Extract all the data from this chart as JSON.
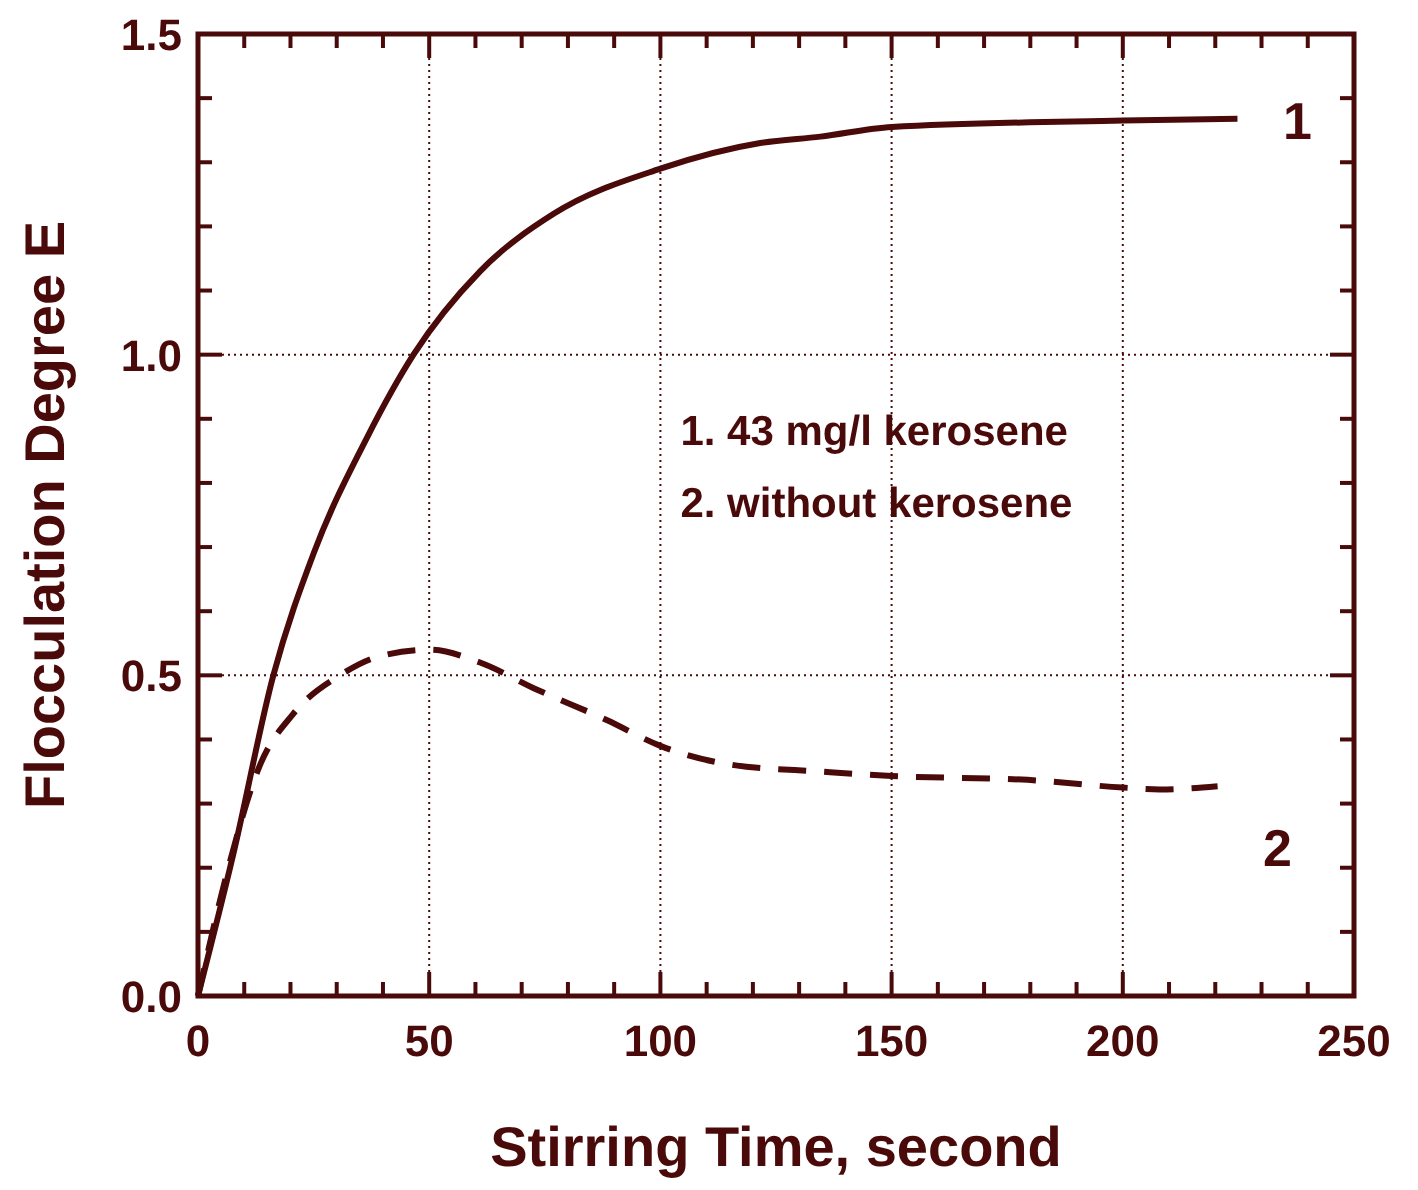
{
  "chart_data": {
    "type": "line",
    "xlabel": "Stirring Time, second",
    "ylabel": "Flocculation Degree E",
    "xlim": [
      0,
      250
    ],
    "ylim": [
      0,
      1.5
    ],
    "xticks": [
      0,
      {
        "value": 10,
        "label": null
      },
      {
        "value": 20,
        "label": null
      },
      {
        "value": 30,
        "label": null
      },
      {
        "value": 40,
        "label": null
      },
      50,
      {
        "value": 60,
        "label": null
      },
      {
        "value": 70,
        "label": null
      },
      {
        "value": 80,
        "label": null
      },
      {
        "value": 90,
        "label": null
      },
      100,
      {
        "value": 110,
        "label": null
      },
      {
        "value": 120,
        "label": null
      },
      {
        "value": 130,
        "label": null
      },
      {
        "value": 140,
        "label": null
      },
      150,
      {
        "value": 160,
        "label": null
      },
      {
        "value": 170,
        "label": null
      },
      {
        "value": 180,
        "label": null
      },
      {
        "value": 190,
        "label": null
      },
      200,
      {
        "value": 210,
        "label": null
      },
      {
        "value": 220,
        "label": null
      },
      {
        "value": 230,
        "label": null
      },
      {
        "value": 240,
        "label": null
      },
      250
    ],
    "yticks": [
      {
        "value": 0,
        "label": "0.0"
      },
      {
        "value": 0.1,
        "label": null
      },
      {
        "value": 0.2,
        "label": null
      },
      {
        "value": 0.3,
        "label": null
      },
      {
        "value": 0.4,
        "label": null
      },
      {
        "value": 0.5,
        "label": "0.5"
      },
      {
        "value": 0.6,
        "label": null
      },
      {
        "value": 0.7,
        "label": null
      },
      {
        "value": 0.8,
        "label": null
      },
      {
        "value": 0.9,
        "label": null
      },
      {
        "value": 1,
        "label": "1.0"
      },
      {
        "value": 1.1,
        "label": null
      },
      {
        "value": 1.2,
        "label": null
      },
      {
        "value": 1.3,
        "label": null
      },
      {
        "value": 1.4,
        "label": null
      },
      {
        "value": 1.5,
        "label": "1.5"
      }
    ],
    "grid": true,
    "marker": "none",
    "series": [
      {
        "color": "#4a0a0a",
        "line_style": "solid",
        "x": [
          0,
          7.6,
          16.3,
          25,
          36.5,
          46.6,
          61,
          77,
          100,
          121.6,
          134.6,
          150,
          200,
          224.8
        ],
        "values": [
          0,
          0.22,
          0.5,
          0.69,
          0.87,
          1.0,
          1.13,
          1.22,
          1.29,
          1.33,
          1.34,
          1.355,
          1.365,
          1.368
        ]
      },
      {
        "color": "#4a0a0a",
        "line_style": "dashed",
        "x": [
          0,
          6.2,
          13.4,
          20.6,
          30.7,
          39.4,
          50.2,
          61,
          72.6,
          88.5,
          100,
          115.9,
          134.6,
          150,
          179.4,
          200,
          208,
          220.5
        ],
        "values": [
          0,
          0.19,
          0.36,
          0.44,
          0.5,
          0.53,
          0.54,
          0.52,
          0.48,
          0.43,
          0.39,
          0.36,
          0.35,
          0.343,
          0.337,
          0.325,
          0.322,
          0.327
        ]
      }
    ],
    "annotations": [
      "1. 43 mg/l kerosene",
      "2. without kerosene",
      "1",
      "2"
    ]
  }
}
